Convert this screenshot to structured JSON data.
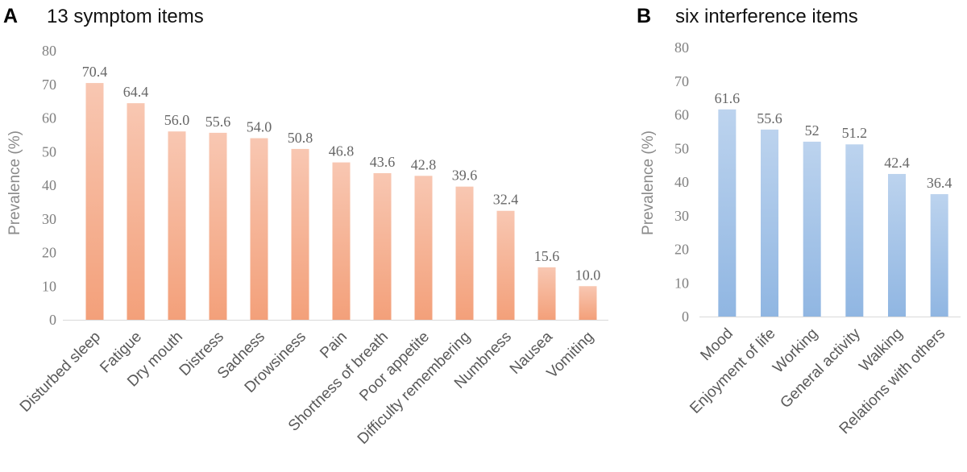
{
  "chart_data": [
    {
      "type": "bar",
      "panel": "A",
      "title": "13 symptom items",
      "ylabel": "Prevalence (%)",
      "xlabel": "",
      "ylim": [
        0,
        80
      ],
      "yticks": [
        0,
        10,
        20,
        30,
        40,
        50,
        60,
        70,
        80
      ],
      "categories": [
        "Disturbed sleep",
        "Fatigue",
        "Dry mouth",
        "Distress",
        "Sadness",
        "Drowsiness",
        "Pain",
        "Shortness of breath",
        "Poor appetite",
        "Difficulty remembering",
        "Numbness",
        "Nausea",
        "Vomiting"
      ],
      "values": [
        70.4,
        64.4,
        56.0,
        55.6,
        54.0,
        50.8,
        46.8,
        43.6,
        42.8,
        39.6,
        32.4,
        15.6,
        10.0
      ],
      "labels": [
        "70.4",
        "64.4",
        "56.0",
        "55.6",
        "54.0",
        "50.8",
        "46.8",
        "43.6",
        "42.8",
        "39.6",
        "32.4",
        "15.6",
        "10.0"
      ],
      "color_top": "#f8c7b2",
      "color_bottom": "#f3a07a",
      "grid": false
    },
    {
      "type": "bar",
      "panel": "B",
      "title": "six interference items",
      "ylabel": "Prevalence (%)",
      "xlabel": "",
      "ylim": [
        0,
        80
      ],
      "yticks": [
        0,
        10,
        20,
        30,
        40,
        50,
        60,
        70,
        80
      ],
      "categories": [
        "Mood",
        "Enjoyment of life",
        "Working",
        "General activity",
        "Walking",
        "Relations with others"
      ],
      "values": [
        61.6,
        55.6,
        52,
        51.2,
        42.4,
        36.4
      ],
      "labels": [
        "61.6",
        "55.6",
        "52",
        "51.2",
        "42.4",
        "36.4"
      ],
      "color_top": "#bcd3ee",
      "color_bottom": "#90b6e2",
      "grid": false
    }
  ]
}
